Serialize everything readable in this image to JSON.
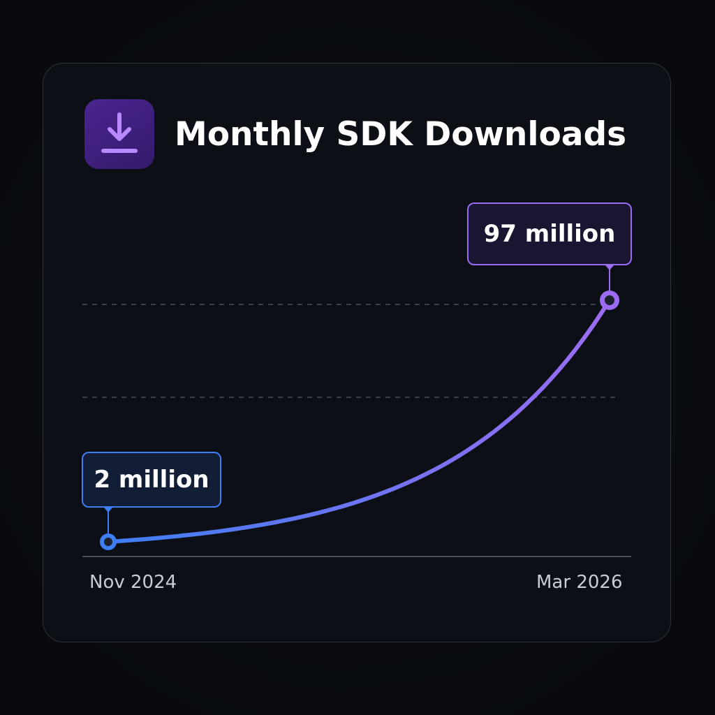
{
  "header": {
    "title": "Monthly SDK Downloads",
    "icon": "download-icon"
  },
  "colors": {
    "start": "#3d7ef2",
    "end": "#9b6cf3",
    "gridline": "#3a3e47",
    "axis": "#4a4e57"
  },
  "chart_data": {
    "type": "line",
    "title": "Monthly SDK Downloads",
    "xlabel": "",
    "ylabel": "",
    "x": [
      "Nov 2024",
      "Mar 2026"
    ],
    "series": [
      {
        "values": [
          2,
          97
        ],
        "labels": [
          "2 million",
          "97 million"
        ]
      }
    ],
    "curve": "exponential",
    "grid": true,
    "legend": "none"
  }
}
